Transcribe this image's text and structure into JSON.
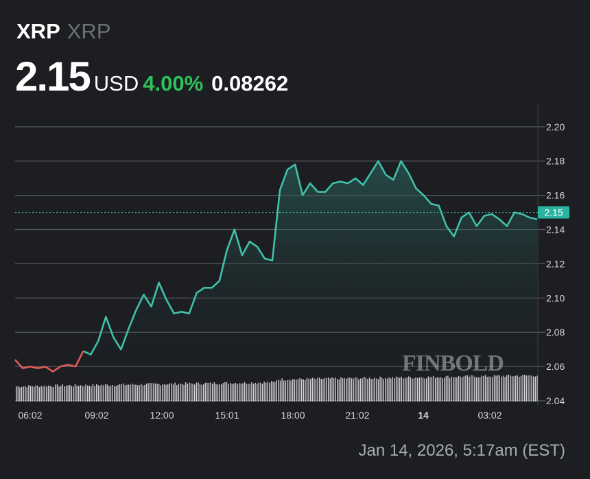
{
  "header": {
    "symbol": "XRP",
    "name": "XRP",
    "price": "2.15",
    "currency": "USD",
    "change_pct": "4.00%",
    "change_abs": "0.08262"
  },
  "colors": {
    "background": "#1c1e22",
    "up_line": "#3fc1ab",
    "down_line": "#e25a5a",
    "change_green": "#2fc15a",
    "price_tag": "#2ab3a0"
  },
  "watermark": "FINBOLD",
  "timestamp": "Jan 14, 2026, 5:17am (EST)",
  "current_price_tag": "2.15",
  "chart_data": {
    "type": "line",
    "title": "XRP 2.15 USD 4.00% 0.08262",
    "xlabel": "",
    "ylabel": "",
    "ylim": [
      2.04,
      2.21
    ],
    "y_ticks": [
      "2.20",
      "2.18",
      "2.16",
      "2.14",
      "2.12",
      "2.10",
      "2.08",
      "2.06",
      "2.04"
    ],
    "x_ticks": [
      "06:02",
      "09:02",
      "12:00",
      "15:01",
      "18:00",
      "21:02",
      "14",
      "03:02"
    ],
    "grid": true,
    "current_value": 2.15,
    "previous_close_reference": 2.06,
    "series": [
      {
        "name": "XRP/USD",
        "points": [
          [
            "05:20",
            2.064
          ],
          [
            "05:45",
            2.059
          ],
          [
            "06:10",
            2.06
          ],
          [
            "06:35",
            2.059
          ],
          [
            "07:00",
            2.06
          ],
          [
            "07:25",
            2.057
          ],
          [
            "07:50",
            2.06
          ],
          [
            "08:15",
            2.061
          ],
          [
            "08:40",
            2.06
          ],
          [
            "09:00",
            2.069
          ],
          [
            "09:20",
            2.067
          ],
          [
            "09:40",
            2.075
          ],
          [
            "10:00",
            2.089
          ],
          [
            "10:20",
            2.077
          ],
          [
            "10:40",
            2.07
          ],
          [
            "11:00",
            2.082
          ],
          [
            "11:20",
            2.093
          ],
          [
            "11:40",
            2.102
          ],
          [
            "12:00",
            2.095
          ],
          [
            "12:20",
            2.109
          ],
          [
            "12:40",
            2.099
          ],
          [
            "13:00",
            2.091
          ],
          [
            "13:20",
            2.092
          ],
          [
            "13:40",
            2.091
          ],
          [
            "14:00",
            2.103
          ],
          [
            "14:20",
            2.106
          ],
          [
            "14:40",
            2.106
          ],
          [
            "15:00",
            2.11
          ],
          [
            "15:20",
            2.128
          ],
          [
            "15:40",
            2.14
          ],
          [
            "16:00",
            2.125
          ],
          [
            "16:20",
            2.133
          ],
          [
            "16:40",
            2.13
          ],
          [
            "17:00",
            2.123
          ],
          [
            "17:20",
            2.122
          ],
          [
            "17:40",
            2.163
          ],
          [
            "18:00",
            2.175
          ],
          [
            "18:20",
            2.178
          ],
          [
            "18:40",
            2.16
          ],
          [
            "19:00",
            2.167
          ],
          [
            "19:20",
            2.162
          ],
          [
            "19:40",
            2.162
          ],
          [
            "20:00",
            2.167
          ],
          [
            "20:20",
            2.168
          ],
          [
            "20:40",
            2.167
          ],
          [
            "21:00",
            2.17
          ],
          [
            "21:20",
            2.166
          ],
          [
            "21:40",
            2.173
          ],
          [
            "22:00",
            2.18
          ],
          [
            "22:20",
            2.172
          ],
          [
            "22:40",
            2.169
          ],
          [
            "23:00",
            2.18
          ],
          [
            "23:20",
            2.173
          ],
          [
            "23:40",
            2.164
          ],
          [
            "00:00",
            2.16
          ],
          [
            "00:20",
            2.155
          ],
          [
            "00:40",
            2.154
          ],
          [
            "01:00",
            2.142
          ],
          [
            "01:20",
            2.136
          ],
          [
            "01:40",
            2.147
          ],
          [
            "02:00",
            2.15
          ],
          [
            "02:20",
            2.142
          ],
          [
            "02:40",
            2.148
          ],
          [
            "03:00",
            2.149
          ],
          [
            "03:20",
            2.146
          ],
          [
            "03:40",
            2.142
          ],
          [
            "04:00",
            2.15
          ],
          [
            "04:20",
            2.149
          ],
          [
            "04:40",
            2.147
          ],
          [
            "05:17",
            2.146
          ]
        ]
      }
    ],
    "volume_bars": "present (white bars along bottom, gradually increasing)"
  }
}
